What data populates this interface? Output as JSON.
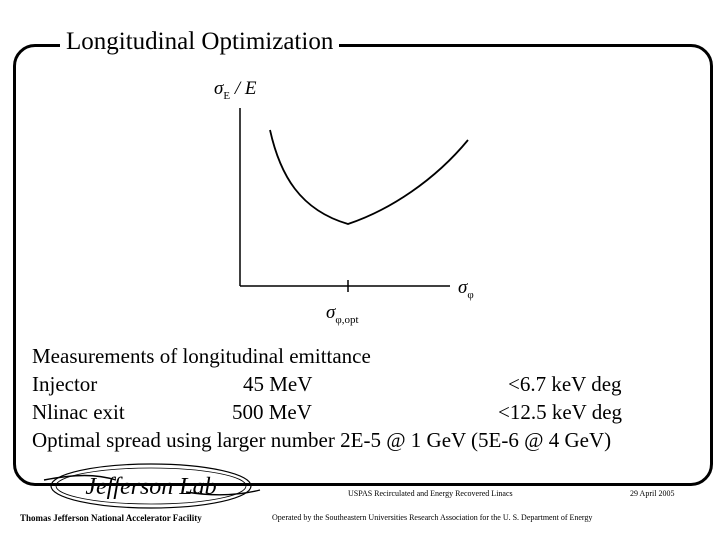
{
  "slide": {
    "title": "Longitudinal Optimization"
  },
  "figure": {
    "ylabel_sym": "σ",
    "ylabel_sub": "E",
    "ylabel_rest": " / E",
    "xlabel_sym": "σ",
    "xlabel_sub": "φ",
    "xmin_sym": "σ",
    "xmin_sub": "φ,opt"
  },
  "content": {
    "heading": "Measurements of longitudinal emittance",
    "rows": [
      {
        "label": "Injector",
        "energy": "45 MeV",
        "emittance": "<6.7 keV deg"
      },
      {
        "label": "Nlinac exit",
        "energy": "500 MeV",
        "emittance": "<12.5 keV deg"
      }
    ],
    "optimal": "Optimal spread using larger number 2E-5 @ 1 GeV (5E-6 @ 4 GeV)"
  },
  "logo": {
    "text": "Jefferson Lab"
  },
  "footer": {
    "organization": "Thomas Jefferson National Accelerator Facility",
    "course": "USPAS Recirculated and Energy Recovered Linacs",
    "operated": "Operated by the Southeastern Universities Research Association for the U. S. Department of Energy",
    "date": "29 April 2005"
  }
}
